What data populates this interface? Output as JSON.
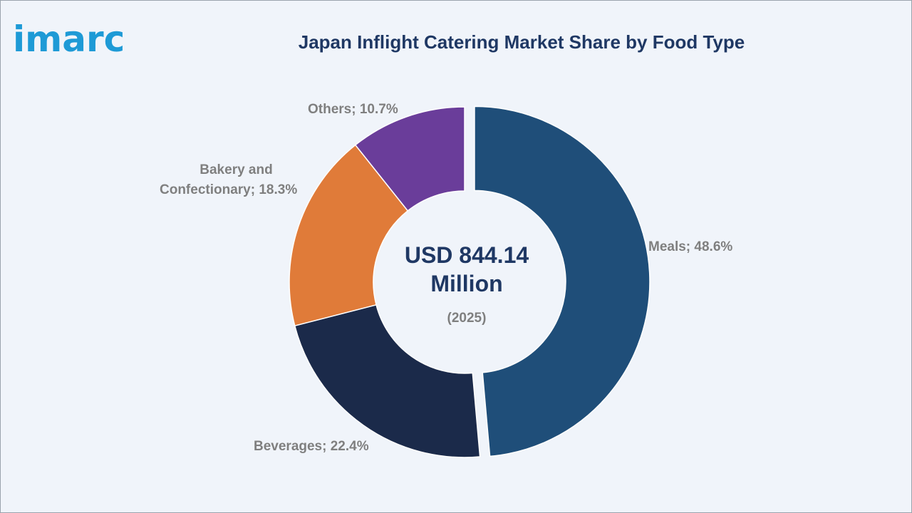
{
  "brand": {
    "logo_text": "imarc"
  },
  "chart_data": {
    "type": "pie",
    "title": "Japan Inflight Catering Market Share by Food Type",
    "center_value": "USD 844.14 Million",
    "center_year": "(2025)",
    "unit": "%",
    "slices": [
      {
        "label": "Meals",
        "value": 48.6,
        "display": "Meals; 48.6%",
        "color": "#1f4e79"
      },
      {
        "label": "Beverages",
        "value": 22.4,
        "display": "Beverages; 22.4%",
        "color": "#1b2a4a"
      },
      {
        "label": "Bakery and Confectionary",
        "value": 18.3,
        "display": "Bakery and Confectionary; 18.3%",
        "color": "#e07b39"
      },
      {
        "label": "Others",
        "value": 10.7,
        "display": "Others; 10.7%",
        "color": "#6a3d9a"
      }
    ]
  }
}
